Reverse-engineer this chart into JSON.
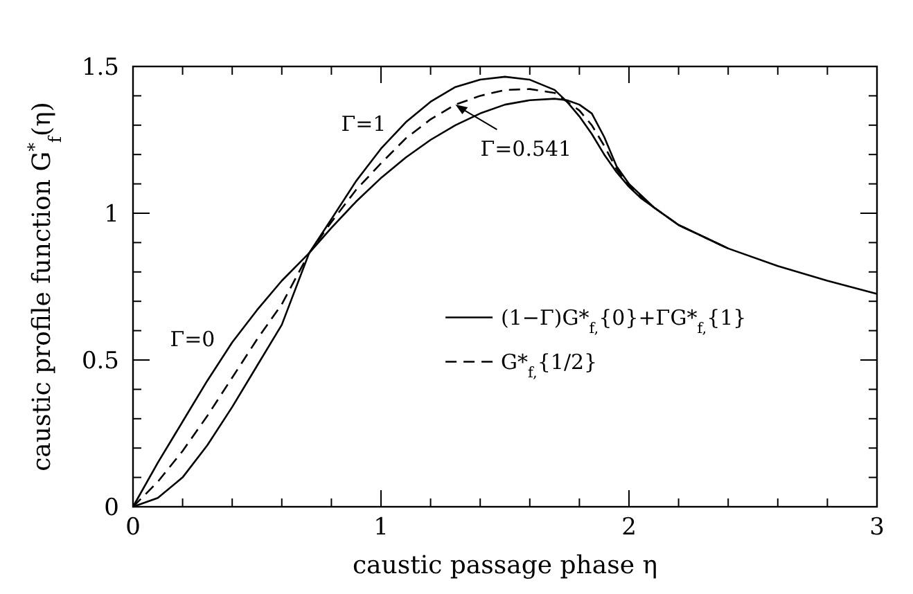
{
  "chart_data": {
    "type": "line",
    "xlabel": "caustic passage phase η",
    "ylabel": "caustic profile function G$^{*}$$_{f}$(η)",
    "x": [
      0,
      0.1,
      0.2,
      0.3,
      0.4,
      0.5,
      0.6,
      0.71,
      0.8,
      0.9,
      1.0,
      1.1,
      1.2,
      1.3,
      1.4,
      1.5,
      1.6,
      1.7,
      1.75,
      1.8,
      1.85,
      1.9,
      1.95,
      2.0,
      2.05,
      2.1,
      2.2,
      2.4,
      2.6,
      2.8,
      3.0
    ],
    "series": [
      {
        "name": "(1−Γ)G*$_{f,}${0}+ΓG*$_{f,}${1}",
        "color": "#000000",
        "line_style": "solid",
        "values": [
          0,
          0.15,
          0.29,
          0.43,
          0.56,
          0.67,
          0.77,
          0.864,
          0.95,
          1.04,
          1.12,
          1.19,
          1.25,
          1.3,
          1.34,
          1.37,
          1.385,
          1.39,
          1.385,
          1.37,
          1.34,
          1.26,
          1.16,
          1.1,
          1.06,
          1.02,
          0.96,
          0.88,
          0.82,
          0.77,
          0.725
        ]
      },
      {
        "color": "#000000",
        "line_style": "solid",
        "x": [
          0,
          0.1,
          0.2,
          0.3,
          0.4,
          0.5,
          0.6,
          0.71,
          0.8,
          0.9,
          1.0,
          1.1,
          1.2,
          1.3,
          1.4,
          1.5,
          1.6,
          1.7,
          1.75,
          1.8,
          1.85,
          1.9,
          1.95,
          2.0,
          2.05,
          2.1,
          2.2,
          2.4
        ],
        "values": [
          0,
          0.03,
          0.1,
          0.21,
          0.34,
          0.48,
          0.62,
          0.864,
          0.98,
          1.11,
          1.22,
          1.31,
          1.38,
          1.43,
          1.455,
          1.465,
          1.455,
          1.42,
          1.38,
          1.33,
          1.27,
          1.2,
          1.14,
          1.09,
          1.05,
          1.02,
          0.96,
          0.88
        ]
      },
      {
        "name": "G*$_{f,}${1/2}",
        "color": "#000000",
        "line_style": "dashed",
        "x": [
          0,
          0.1,
          0.2,
          0.3,
          0.4,
          0.5,
          0.6,
          0.71,
          0.8,
          0.9,
          1.0,
          1.1,
          1.2,
          1.3,
          1.4,
          1.5,
          1.6,
          1.7,
          1.75,
          1.8,
          1.85,
          1.9,
          1.95,
          2.0,
          2.05,
          2.1,
          2.2,
          2.4
        ],
        "values": [
          0,
          0.085,
          0.19,
          0.31,
          0.44,
          0.57,
          0.69,
          0.864,
          0.97,
          1.08,
          1.17,
          1.255,
          1.32,
          1.37,
          1.4,
          1.42,
          1.423,
          1.41,
          1.38,
          1.35,
          1.3,
          1.23,
          1.15,
          1.095,
          1.055,
          1.02,
          0.96,
          0.88
        ]
      }
    ],
    "xlim": [
      0,
      3
    ],
    "ylim": [
      0,
      1.5
    ],
    "xticks": [
      0,
      {
        "value": 0.2,
        "label": null
      },
      {
        "value": 0.4,
        "label": null
      },
      {
        "value": 0.6,
        "label": null
      },
      {
        "value": 0.8,
        "label": null
      },
      1,
      {
        "value": 1.2,
        "label": null
      },
      {
        "value": 1.4,
        "label": null
      },
      {
        "value": 1.6,
        "label": null
      },
      {
        "value": 1.8,
        "label": null
      },
      2,
      {
        "value": 2.2,
        "label": null
      },
      {
        "value": 2.4,
        "label": null
      },
      {
        "value": 2.6,
        "label": null
      },
      {
        "value": 2.8,
        "label": null
      },
      3
    ],
    "yticks": [
      0,
      {
        "value": 0.1,
        "label": null
      },
      {
        "value": 0.2,
        "label": null
      },
      {
        "value": 0.3,
        "label": null
      },
      {
        "value": 0.4,
        "label": null
      },
      0.5,
      {
        "value": 0.6,
        "label": null
      },
      {
        "value": 0.7,
        "label": null
      },
      {
        "value": 0.8,
        "label": null
      },
      {
        "value": 0.9,
        "label": null
      },
      1,
      {
        "value": 1.1,
        "label": null
      },
      {
        "value": 1.2,
        "label": null
      },
      {
        "value": 1.3,
        "label": null
      },
      {
        "value": 1.4,
        "label": null
      },
      1.5
    ],
    "annotations": [
      "Γ=1",
      {
        "text": "Γ=0.541",
        "x": 1.3,
        "y": 1.37
      },
      "Γ=0"
    ],
    "grid": false,
    "legend": "right",
    "marker": "none"
  }
}
